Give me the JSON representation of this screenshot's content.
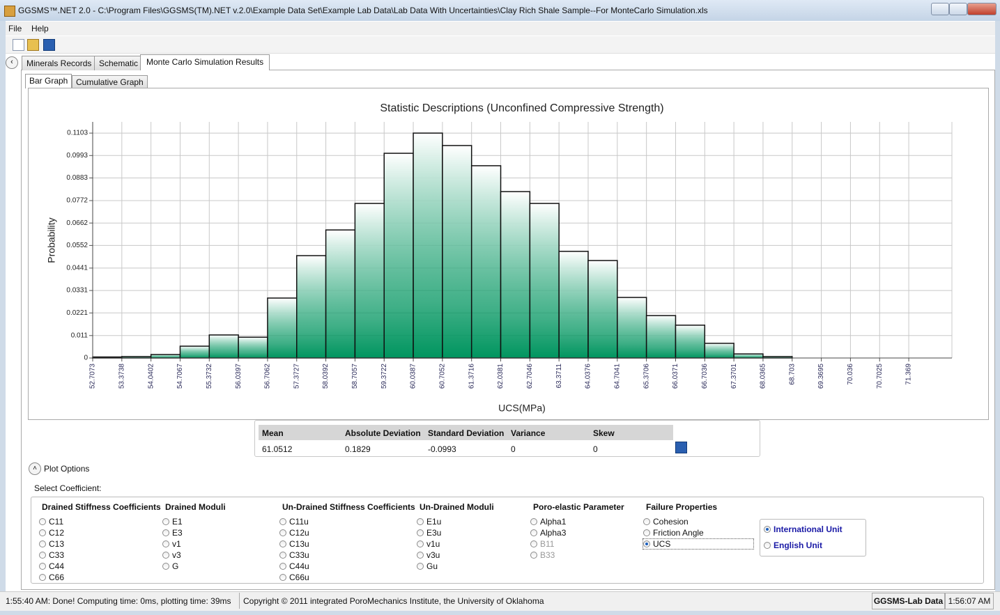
{
  "window": {
    "title": "GGSMS™.NET 2.0 - C:\\Program Files\\GGSMS(TM).NET v.2.0\\Example Data Set\\Example Lab Data\\Lab Data With Uncertainties\\Clay Rich Shale Sample--For MonteCarlo Simulation.xls"
  },
  "menu": [
    "File",
    "Help"
  ],
  "tabs": [
    "Minerals Records",
    "Schematic",
    "Monte Carlo Simulation Results"
  ],
  "sub_tabs": [
    "Bar Graph",
    "Cumulative Graph"
  ],
  "chart_data": {
    "type": "histogram",
    "title": "Statistic Descriptions (Unconfined Compressive Strength)",
    "x_label": "UCS(MPa)",
    "y_label": "Probability",
    "bins": [
      52.7073,
      53.3738,
      54.0402,
      54.7067,
      55.3732,
      56.0397,
      56.7062,
      57.3727,
      58.0392,
      58.7057,
      59.3722,
      60.0387,
      60.7052,
      61.3716,
      62.0381,
      62.7046,
      63.3711,
      64.0376,
      64.7041,
      65.3706,
      66.0371,
      66.7036,
      67.3701,
      68.0365,
      68.703,
      69.3695,
      70.036,
      70.7025,
      71.369
    ],
    "values": [
      0.0005,
      0.0007,
      0.0017,
      0.0058,
      0.0113,
      0.0102,
      0.0294,
      0.0502,
      0.0628,
      0.0758,
      0.1004,
      0.1103,
      0.1042,
      0.0943,
      0.0816,
      0.0758,
      0.0523,
      0.0478,
      0.0297,
      0.0208,
      0.0161,
      0.0072,
      0.002,
      0.0007,
      0,
      0,
      0,
      0
    ],
    "color": "#00955f",
    "xlim": [
      52.7073,
      72.356
    ],
    "ylim": [
      0,
      0.1158
    ],
    "xticks": [
      52.7073,
      53.3738,
      54.0402,
      54.7067,
      55.3732,
      56.0397,
      56.7062,
      57.3727,
      58.0392,
      58.7057,
      59.3722,
      60.0387,
      60.7052,
      61.3716,
      62.0381,
      62.7046,
      63.3711,
      64.0376,
      64.7041,
      65.3706,
      66.0371,
      66.7036,
      67.3701,
      68.0365,
      68.703,
      69.3695,
      70.036,
      70.7025,
      71.369
    ],
    "yticks": [
      0,
      0.011,
      0.0221,
      0.0331,
      0.0441,
      0.0552,
      0.0662,
      0.0772,
      0.0883,
      0.0993,
      0.1103
    ],
    "grid": true
  },
  "stats": {
    "headers": [
      "Mean",
      "Absolute Deviation",
      "Standard Deviation",
      "Variance",
      "Skew"
    ],
    "values": [
      "61.0512",
      "0.1829",
      "-0.0993",
      "0",
      "0"
    ]
  },
  "plot_options": {
    "toggle": "Plot Options",
    "select_label": "Select Coefficient:",
    "groups": [
      {
        "title": "Drained Stiffness Coefficients",
        "options": [
          "C11",
          "C12",
          "C13",
          "C33",
          "C44",
          "C66"
        ]
      },
      {
        "title": "Drained Moduli",
        "options": [
          "E1",
          "E3",
          "v1",
          "v3",
          "G"
        ]
      },
      {
        "title": "Un-Drained Stiffness Coefficients",
        "options": [
          "C11u",
          "C12u",
          "C13u",
          "C33u",
          "C44u",
          "C66u"
        ]
      },
      {
        "title": "Un-Drained Moduli",
        "options": [
          "E1u",
          "E3u",
          "v1u",
          "v3u",
          "Gu"
        ]
      },
      {
        "title": "Poro-elastic Parameter",
        "options": [
          "Alpha1",
          "Alpha3",
          "B11",
          "B33"
        ]
      },
      {
        "title": "Failure Properties",
        "options": [
          "Cohesion",
          "Friction Angle",
          "UCS"
        ]
      }
    ],
    "units": [
      "International Unit",
      "English Unit"
    ]
  },
  "status_bar": {
    "message": "1:55:40 AM: Done! Computing time:  0ms, plotting time:  39ms",
    "copyright": "Copyright © 2011 integrated PoroMechanics Institute, the University of Oklahoma",
    "module": "GGSMS-Lab Data",
    "time": "1:56:07 AM"
  }
}
